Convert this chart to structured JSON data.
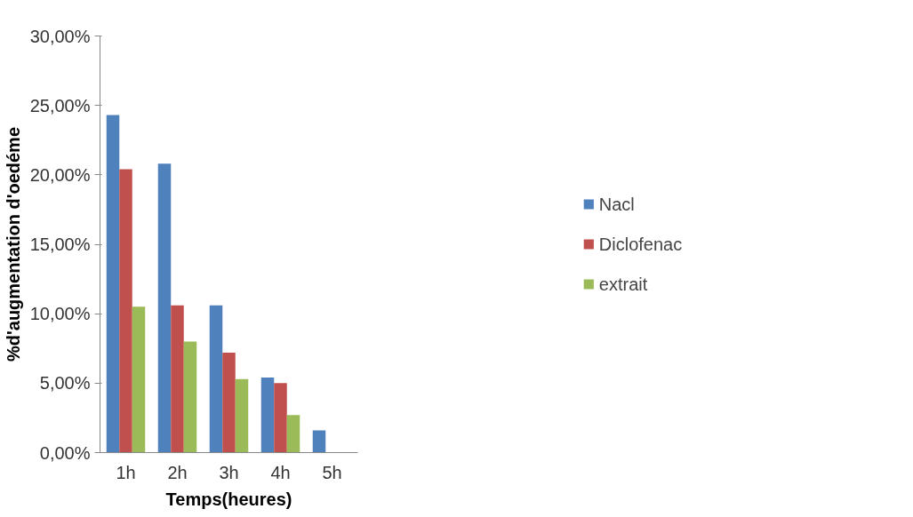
{
  "chart_data": {
    "type": "bar",
    "xlabel": "Temps(heures)",
    "ylabel": "%d'augmentation d'oedéme",
    "categories": [
      "1h",
      "2h",
      "3h",
      "4h",
      "5h"
    ],
    "series": [
      {
        "name": "Nacl",
        "color": "#4f81bd",
        "values": [
          24.3,
          20.8,
          10.6,
          5.4,
          1.6
        ]
      },
      {
        "name": "Diclofenac",
        "color": "#c0504d",
        "values": [
          20.4,
          10.6,
          7.2,
          5.0,
          null
        ]
      },
      {
        "name": "extrait",
        "color": "#9bbb59",
        "values": [
          10.5,
          8.0,
          5.3,
          2.7,
          null
        ]
      }
    ],
    "ylim": [
      0,
      30
    ],
    "yticks": [
      {
        "value": 0,
        "label": "0,00%"
      },
      {
        "value": 5,
        "label": "5,00%"
      },
      {
        "value": 10,
        "label": "10,00%"
      },
      {
        "value": 15,
        "label": "15,00%"
      },
      {
        "value": 20,
        "label": "20,00%"
      },
      {
        "value": 25,
        "label": "25,00%"
      },
      {
        "value": 30,
        "label": "30,00%"
      }
    ],
    "grid": false,
    "legend": "right"
  }
}
